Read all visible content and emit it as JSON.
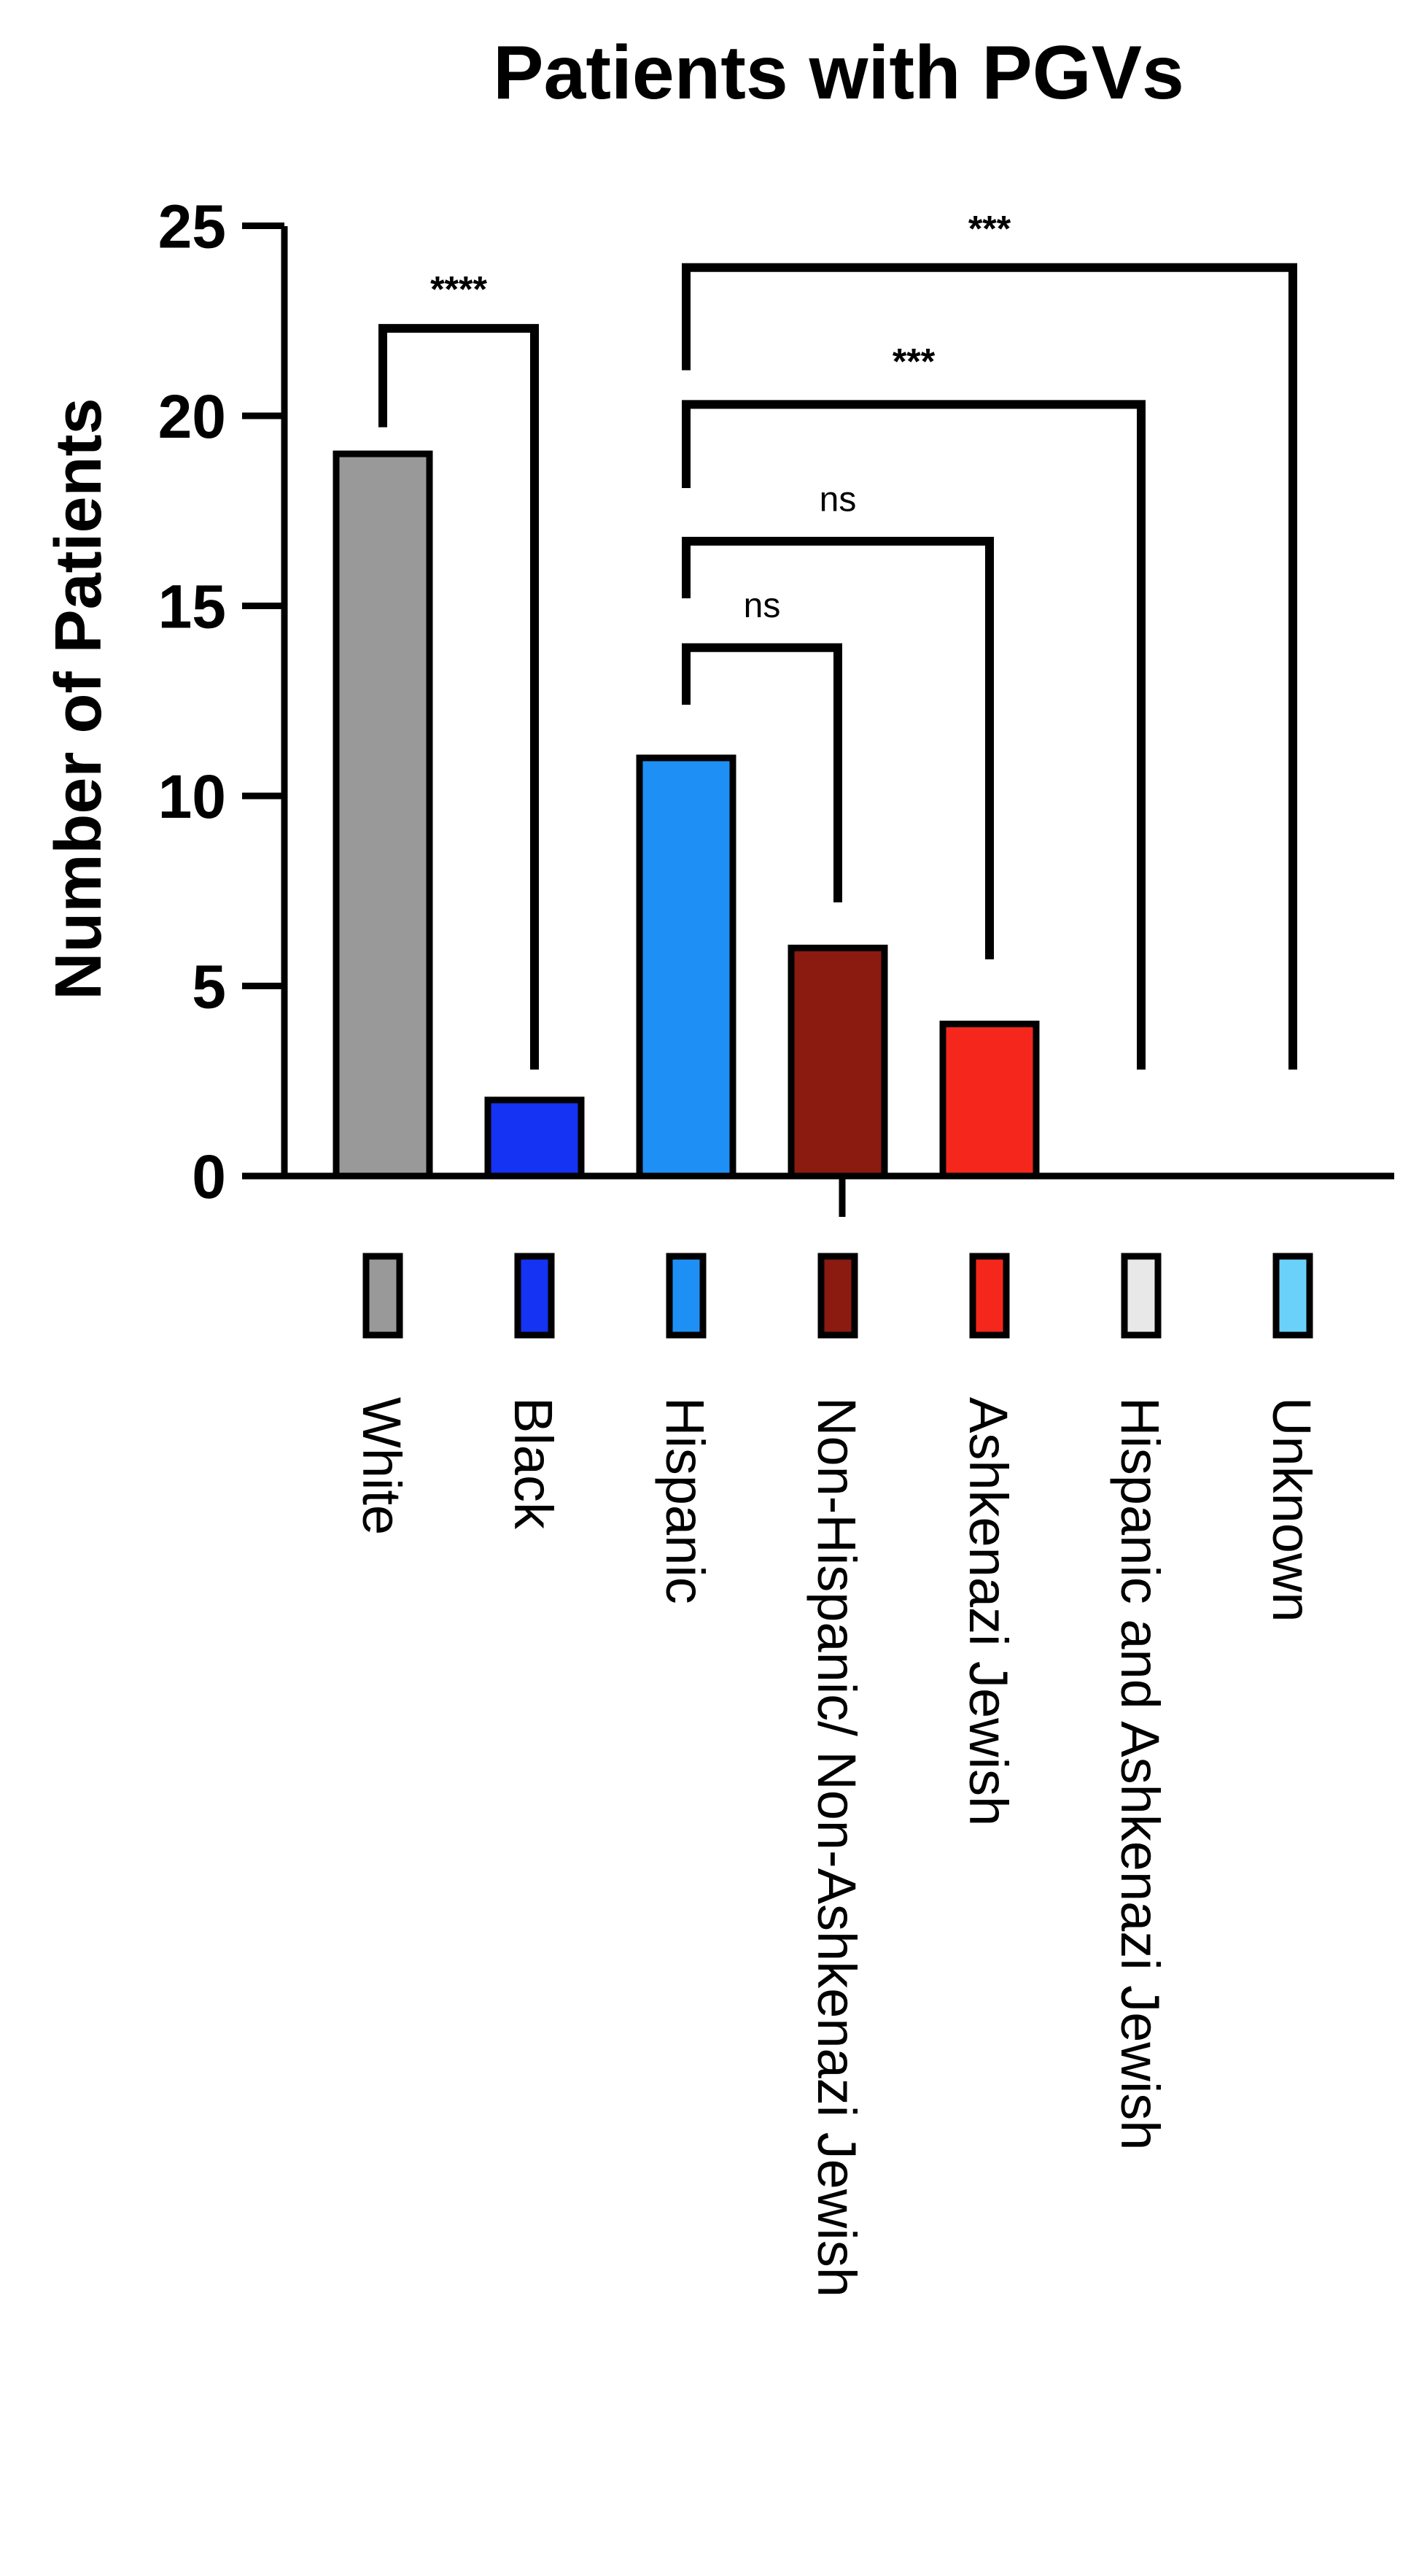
{
  "chart_data": {
    "type": "bar",
    "title": "Patients with PGVs",
    "xlabel": "",
    "ylabel": "Number of Patients",
    "ylim": [
      0,
      25
    ],
    "yticks": [
      0,
      5,
      10,
      15,
      20,
      25
    ],
    "grid": false,
    "legend": "color swatches below x-axis, one per category",
    "categories": [
      "White",
      "Black",
      "Hispanic",
      "Non-Hispanic/ Non-Ashkenazi Jewish",
      "Ashkenazi Jewish",
      "Hispanic and Ashkenazi Jewish",
      "Unknown"
    ],
    "values": [
      19,
      2,
      11,
      6,
      4,
      0,
      0
    ],
    "colors": [
      "#999999",
      "#1433f2",
      "#1e90f5",
      "#8b1a10",
      "#f5271c",
      "#e8e8e8",
      "#6ad2fa"
    ],
    "comparisons": [
      {
        "from": "White",
        "to": "Black",
        "label": "****"
      },
      {
        "from": "Hispanic",
        "to": "Non-Hispanic/ Non-Ashkenazi Jewish",
        "label": "ns"
      },
      {
        "from": "Hispanic",
        "to": "Ashkenazi Jewish",
        "label": "ns"
      },
      {
        "from": "Hispanic",
        "to": "Hispanic and Ashkenazi Jewish",
        "label": "***"
      },
      {
        "from": "Hispanic",
        "to": "Unknown",
        "label": "***"
      }
    ]
  }
}
